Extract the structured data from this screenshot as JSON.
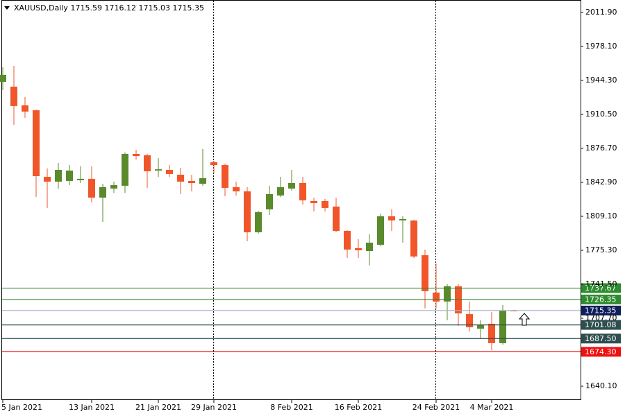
{
  "chart_data": {
    "type": "candlestick",
    "title": "XAUUSD,Daily",
    "categories": [
      "5 Jan 2021",
      null,
      null,
      null,
      null,
      null,
      null,
      null,
      "13 Jan 2021",
      null,
      null,
      null,
      null,
      null,
      "21 Jan 2021",
      null,
      null,
      null,
      null,
      "29 Jan 2021",
      null,
      null,
      null,
      null,
      null,
      null,
      "8 Feb 2021",
      null,
      null,
      null,
      null,
      null,
      "16 Feb 2021",
      null,
      null,
      null,
      null,
      null,
      null,
      "24 Feb 2021",
      null,
      null,
      null,
      null,
      "4 Mar 2021",
      null,
      null
    ],
    "open": [
      1942.9,
      1938.1,
      1919.5,
      1914.6,
      1848.4,
      1843.6,
      1844.3,
      1845.0,
      1846.4,
      1827.7,
      1836.7,
      1839.5,
      1871.2,
      1869.8,
      1854.6,
      1855.3,
      1850.5,
      1844.3,
      1841.5,
      1862.9,
      1860.1,
      1838.1,
      1833.9,
      1793.2,
      1816.0,
      1829.8,
      1836.7,
      1842.2,
      1824.3,
      1824.3,
      1818.8,
      1794.6,
      1777.4,
      1774.6,
      1780.8,
      1809.1,
      1805.0,
      1804.9,
      1770.4,
      1733.2,
      1724.3,
      1739.5,
      1711.8,
      1697.3,
      1702.2,
      1682.9,
      1715.59
    ],
    "high": [
      1957.4,
      1958.8,
      1927.7,
      1915.3,
      1856.7,
      1862.2,
      1860.1,
      1858.8,
      1858.8,
      1841.5,
      1843.6,
      1872.6,
      1875.3,
      1871.2,
      1867.0,
      1860.1,
      1857.4,
      1850.5,
      1876.0,
      1864.3,
      1861.5,
      1843.6,
      1838.1,
      1814.6,
      1839.5,
      1848.4,
      1855.3,
      1848.4,
      1827.7,
      1826.3,
      1827.7,
      1795.3,
      1786.3,
      1791.2,
      1811.8,
      1816.0,
      1809.1,
      1805.6,
      1776.0,
      1762.2,
      1741.5,
      1741.5,
      1724.3,
      1705.6,
      1713.9,
      1720.8,
      1716.12
    ],
    "low": [
      1934.6,
      1900.1,
      1907.0,
      1828.4,
      1817.4,
      1836.7,
      1840.1,
      1842.2,
      1822.9,
      1803.6,
      1832.5,
      1832.5,
      1865.6,
      1837.4,
      1848.4,
      1848.4,
      1831.2,
      1833.9,
      1839.5,
      1851.9,
      1829.1,
      1829.8,
      1784.3,
      1791.9,
      1810.5,
      1828.4,
      1834.6,
      1820.8,
      1813.9,
      1813.9,
      1793.2,
      1767.7,
      1767.7,
      1760.1,
      1779.4,
      1794.6,
      1782.9,
      1767.7,
      1717.4,
      1717.4,
      1705.6,
      1700.1,
      1694.6,
      1687.7,
      1675.9,
      1681.5,
      1715.03
    ],
    "close": [
      1949.8,
      1918.8,
      1913.3,
      1849.1,
      1843.6,
      1855.3,
      1854.6,
      1846.4,
      1827.7,
      1838.1,
      1840.1,
      1871.2,
      1869.1,
      1853.9,
      1855.9,
      1851.2,
      1843.6,
      1842.2,
      1847.0,
      1860.1,
      1837.4,
      1833.9,
      1793.2,
      1813.2,
      1831.2,
      1838.1,
      1842.2,
      1825.0,
      1822.2,
      1817.4,
      1794.6,
      1776.0,
      1775.3,
      1782.9,
      1809.1,
      1805.0,
      1806.4,
      1769.1,
      1734.6,
      1724.3,
      1739.5,
      1712.5,
      1698.7,
      1700.8,
      1682.9,
      1715.3,
      1715.35
    ],
    "up_color": "#5a8a2c",
    "down_color": "#f1562a",
    "ylim": [
      1626.3,
      2024.3
    ],
    "yticks": [
      {
        "value": 2011.9,
        "label": "2011.90"
      },
      {
        "value": 1978.1,
        "label": "1978.10"
      },
      {
        "value": 1944.3,
        "label": "1944.30"
      },
      {
        "value": 1910.5,
        "label": "1910.50"
      },
      {
        "value": 1876.7,
        "label": "1876.70"
      },
      {
        "value": 1842.9,
        "label": "1842.90"
      },
      {
        "value": 1809.1,
        "label": "1809.10"
      },
      {
        "value": 1775.3,
        "label": "1775.30"
      },
      {
        "value": 1741.5,
        "label": "1741.50"
      },
      {
        "value": 1707.7,
        "label": "1707.70"
      },
      {
        "value": 1640.1,
        "label": "1640.10"
      }
    ],
    "levels": [
      {
        "value": 1737.67,
        "color": "#2e8b2e",
        "label_color": "#2e8b2e"
      },
      {
        "value": 1726.35,
        "color": "#2e8b2e",
        "label_color": "#2e8b2e"
      },
      {
        "value": 1715.35,
        "color": "#a8b4c4",
        "label_color": "#0f1f5c"
      },
      {
        "value": 1701.08,
        "color": "#2f4f4f",
        "label_color": "#2f4f4f"
      },
      {
        "value": 1687.5,
        "label": "1687.50",
        "color": "#2f4f4f",
        "label_color": "#2f4f4f"
      },
      {
        "value": 1674.3,
        "label": "1674.30",
        "color": "#ee1111",
        "label_color": "#ee1111"
      }
    ]
  }
}
